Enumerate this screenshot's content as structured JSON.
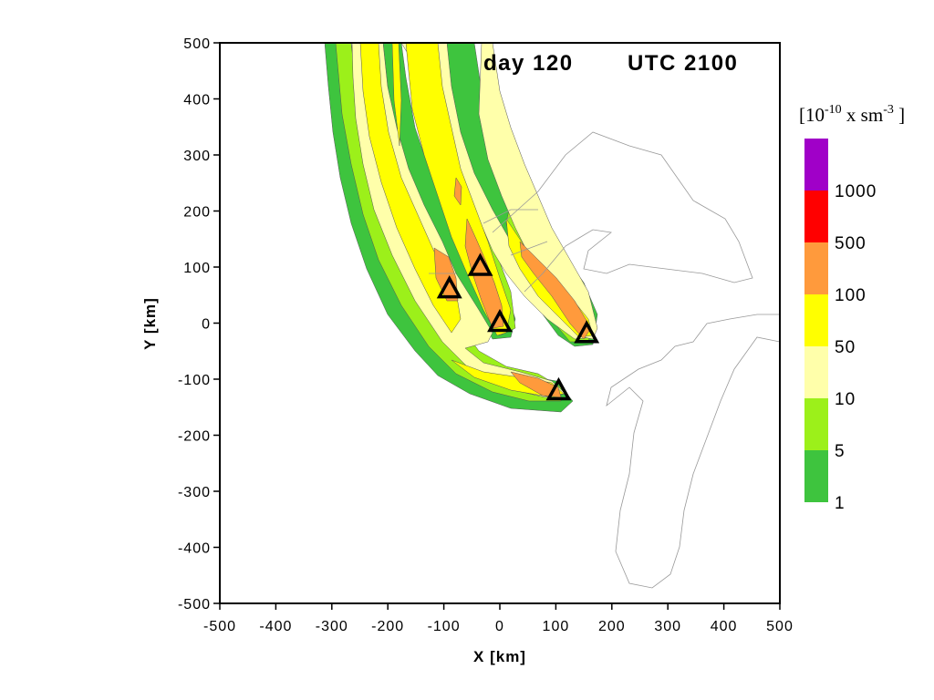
{
  "title_day": "day 120",
  "title_time": "UTC 2100",
  "axes": {
    "x_label": "X [km]",
    "y_label": "Y [km]",
    "x_range": [
      -500,
      500
    ],
    "y_range": [
      -500,
      500
    ],
    "x_ticks": [
      "-500",
      "-400",
      "-300",
      "-200",
      "-100",
      "0",
      "100",
      "200",
      "300",
      "400",
      "500"
    ],
    "y_ticks": [
      "500",
      "400",
      "300",
      "200",
      "100",
      "0",
      "-100",
      "-200",
      "-300",
      "-400",
      "-500"
    ]
  },
  "colorbar": {
    "units_base": "[10",
    "units_exp1": "-10",
    "units_mid": " x sm",
    "units_exp2": "-3",
    "units_end": " ]",
    "levels": [
      {
        "label": "1",
        "color": "#3ec43e"
      },
      {
        "label": "5",
        "color": "#9cf01a"
      },
      {
        "label": "10",
        "color": "#ffffaa"
      },
      {
        "label": "50",
        "color": "#ffff00"
      },
      {
        "label": "100",
        "color": "#ff9a3c"
      },
      {
        "label": "500",
        "color": "#ff0000"
      },
      {
        "label": "1000",
        "color": "#a000c8"
      }
    ]
  },
  "sources": [
    {
      "x": -90,
      "y": 60
    },
    {
      "x": -35,
      "y": 100
    },
    {
      "x": 0,
      "y": 0
    },
    {
      "x": 155,
      "y": -20
    },
    {
      "x": 105,
      "y": -122
    }
  ]
}
